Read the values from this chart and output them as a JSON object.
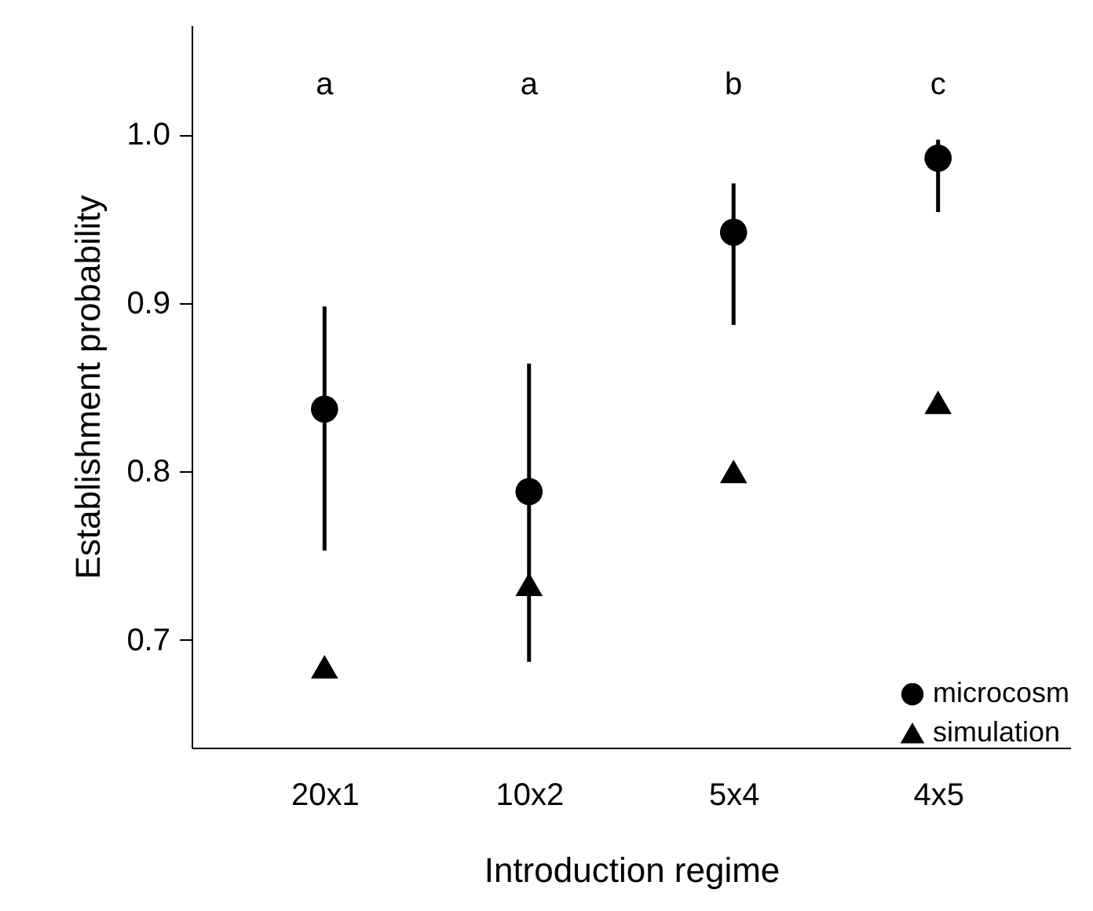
{
  "chart_data": {
    "type": "scatter",
    "xlabel": "Introduction regime",
    "ylabel": "Establishment probability",
    "categories": [
      "20x1",
      "10x2",
      "5x4",
      "4x5"
    ],
    "series": [
      {
        "name": "microcosm",
        "color": "#000000",
        "marker": "circle",
        "values": [
          0.837,
          0.788,
          0.942,
          0.986
        ],
        "errors": [
          [
            0.753,
            0.898
          ],
          [
            0.687,
            0.864
          ],
          [
            0.887,
            0.971
          ],
          [
            0.954,
            0.997
          ]
        ]
      },
      {
        "name": "simulation",
        "color": "#000000",
        "marker": "triangle",
        "values": [
          0.684,
          0.733,
          0.8,
          0.841
        ]
      }
    ],
    "annotations": [
      "a",
      "a",
      "b",
      "c"
    ],
    "ylim": [
      0.636,
      1.065
    ],
    "yticks": [
      {
        "value": 0.7,
        "label": "0.7"
      },
      {
        "value": 0.8,
        "label": "0.8"
      },
      {
        "value": 0.9,
        "label": "0.9"
      },
      {
        "value": 1.0,
        "label": "1.0"
      }
    ],
    "grid": false,
    "legend": "bottom right"
  }
}
